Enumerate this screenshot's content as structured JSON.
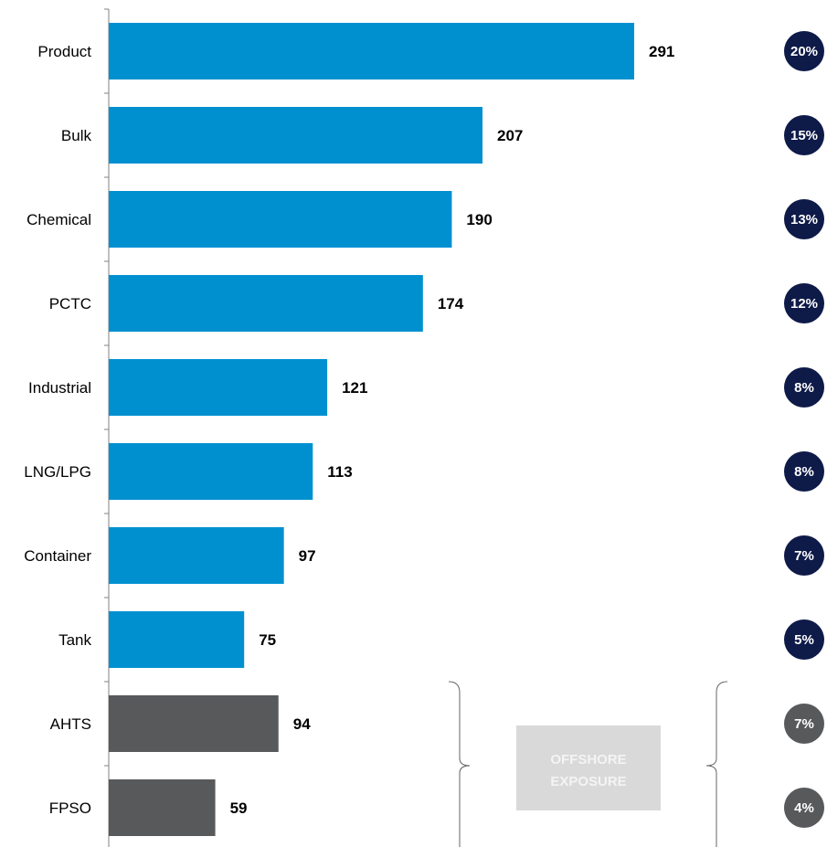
{
  "chart_data": {
    "type": "bar",
    "orientation": "horizontal",
    "title": "",
    "xlabel": "",
    "ylabel": "",
    "categories": [
      "Product",
      "Bulk",
      "Chemical",
      "PCTC",
      "Industrial",
      "LNG/LPG",
      "Container",
      "Tank",
      "AHTS",
      "FPSO"
    ],
    "values": [
      291,
      207,
      190,
      174,
      121,
      113,
      97,
      75,
      94,
      59
    ],
    "shares": [
      "20%",
      "15%",
      "13%",
      "12%",
      "8%",
      "8%",
      "7%",
      "5%",
      "7%",
      "4%"
    ],
    "groups": [
      "main",
      "main",
      "main",
      "main",
      "main",
      "main",
      "main",
      "main",
      "offshore",
      "offshore"
    ],
    "xlim": [
      0,
      300
    ],
    "grid": false,
    "annotation": {
      "text_line1": "OFFSHORE",
      "text_line2": "EXPOSURE"
    }
  },
  "colors": {
    "main_bar": "#0090d0",
    "offshore_bar": "#58595b",
    "main_circle": "#0e1a48",
    "offshore_circle": "#58595b",
    "annotation_box": "#d9d9d9",
    "axis": "#808080"
  }
}
